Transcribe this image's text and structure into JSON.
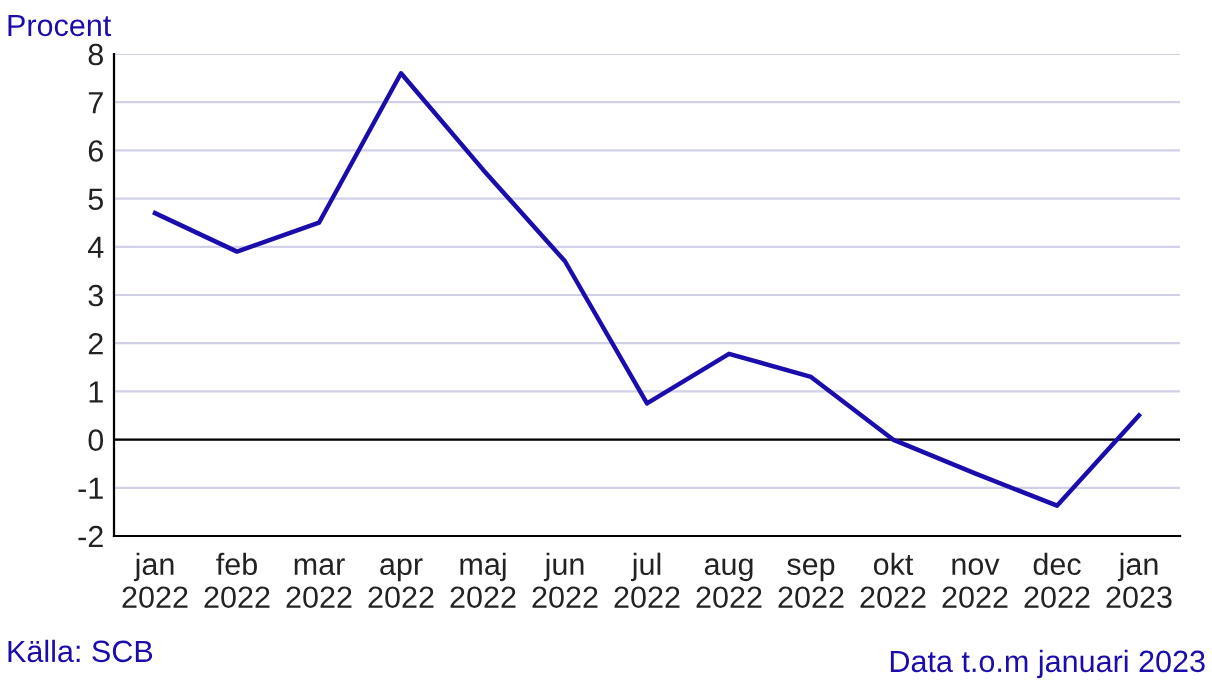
{
  "chart_data": {
    "type": "line",
    "ylabel": "Procent",
    "categories": [
      "jan\n2022",
      "feb\n2022",
      "mar\n2022",
      "apr\n2022",
      "maj\n2022",
      "jun\n2022",
      "jul\n2022",
      "aug\n2022",
      "sep\n2022",
      "okt\n2022",
      "nov\n2022",
      "dec\n2022",
      "jan\n2023"
    ],
    "series": [
      {
        "color": "#1a0dab",
        "values": [
          4.7,
          3.9,
          4.5,
          7.6,
          5.6,
          3.7,
          0.75,
          1.78,
          1.3,
          0.0,
          -0.7,
          -1.37,
          0.5
        ]
      }
    ],
    "ylim": [
      -2,
      8
    ],
    "yticks": [
      -2,
      -1,
      0,
      1,
      2,
      3,
      4,
      5,
      6,
      7,
      8
    ],
    "grid": "y",
    "legend": false,
    "marker": "none",
    "line_style": "solid",
    "ref_lines": [
      {
        "axis": "y",
        "value": 0,
        "color": "#000000"
      }
    ],
    "annotations": [
      "Källa: SCB",
      "Data t.o.m januari 2023"
    ]
  }
}
